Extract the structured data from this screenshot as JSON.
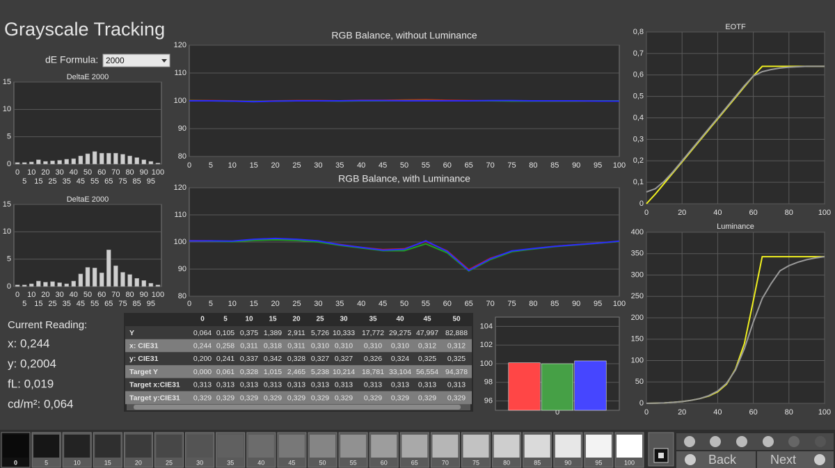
{
  "title": "Grayscale Tracking",
  "de_formula": {
    "label": "dE Formula:",
    "value": "2000"
  },
  "chart_data": [
    {
      "type": "bar",
      "title": "DeltaE 2000",
      "categories": [
        "0",
        "5",
        "10",
        "15",
        "20",
        "25",
        "30",
        "35",
        "40",
        "45",
        "50",
        "55",
        "60",
        "65",
        "70",
        "75",
        "80",
        "85",
        "90",
        "95",
        "100"
      ],
      "values": [
        0.3,
        0.3,
        0.4,
        0.8,
        0.5,
        0.6,
        0.7,
        0.9,
        1.0,
        1.5,
        1.9,
        2.3,
        2.0,
        2.0,
        2.0,
        1.8,
        1.5,
        1.2,
        0.8,
        0.5,
        0.2
      ],
      "color": "#cfcfcf",
      "ylim": [
        0,
        15
      ],
      "yticks": [
        0,
        5,
        10,
        15
      ],
      "grid": "y"
    },
    {
      "type": "bar",
      "title": "DeltaE 2000",
      "categories": [
        "0",
        "5",
        "10",
        "15",
        "20",
        "25",
        "30",
        "35",
        "40",
        "45",
        "50",
        "55",
        "60",
        "65",
        "70",
        "75",
        "80",
        "85",
        "90",
        "95",
        "100"
      ],
      "values": [
        0.3,
        0.3,
        0.5,
        1.0,
        0.8,
        0.9,
        0.7,
        0.5,
        1.0,
        2.3,
        3.5,
        3.4,
        2.5,
        6.7,
        3.8,
        2.6,
        2.2,
        1.5,
        1.1,
        0.6,
        0.3
      ],
      "color": "#cfcfcf",
      "ylim": [
        0,
        15
      ],
      "yticks": [
        0,
        5,
        10,
        15
      ],
      "grid": "y"
    },
    {
      "type": "line",
      "title": "RGB Balance, without Luminance",
      "x": [
        0,
        5,
        10,
        15,
        20,
        25,
        30,
        35,
        40,
        45,
        50,
        55,
        60,
        65,
        70,
        75,
        80,
        85,
        90,
        95,
        100
      ],
      "series": [
        {
          "name": "Red",
          "color": "#d02020",
          "values": [
            100.2,
            100.1,
            100.0,
            99.8,
            100.0,
            100.1,
            100.1,
            100.0,
            100.2,
            100.2,
            100.3,
            100.4,
            100.2,
            100.1,
            100.0,
            100.0,
            100.0,
            99.9,
            99.9,
            100.0,
            100.0
          ]
        },
        {
          "name": "Green",
          "color": "#20a020",
          "values": [
            100.1,
            100.0,
            99.9,
            99.8,
            99.9,
            100.0,
            100.0,
            99.9,
            100.0,
            100.0,
            100.1,
            100.1,
            100.0,
            100.0,
            100.0,
            99.9,
            99.9,
            99.9,
            99.9,
            100.0,
            100.0
          ]
        },
        {
          "name": "Blue",
          "color": "#2a2aff",
          "values": [
            100.0,
            100.0,
            99.9,
            99.7,
            99.9,
            100.0,
            100.0,
            100.0,
            100.1,
            100.1,
            100.0,
            100.0,
            100.0,
            100.0,
            100.1,
            100.1,
            100.0,
            100.0,
            100.0,
            99.9,
            99.9
          ]
        }
      ],
      "xlim": [
        0,
        100
      ],
      "xticks": [
        0,
        5,
        10,
        15,
        20,
        25,
        30,
        35,
        40,
        45,
        50,
        55,
        60,
        65,
        70,
        75,
        80,
        85,
        90,
        95,
        100
      ],
      "ylim": [
        80,
        120
      ],
      "yticks": [
        80,
        90,
        100,
        110,
        120
      ],
      "grid": "y"
    },
    {
      "type": "line",
      "title": "RGB Balance, with Luminance",
      "x": [
        0,
        5,
        10,
        15,
        20,
        25,
        30,
        35,
        40,
        45,
        50,
        55,
        60,
        65,
        70,
        75,
        80,
        85,
        90,
        95,
        100
      ],
      "series": [
        {
          "name": "Red",
          "color": "#d02020",
          "values": [
            100.5,
            100.4,
            100.2,
            100.8,
            101.0,
            100.8,
            100.2,
            99.1,
            98.0,
            97.2,
            97.5,
            100.2,
            96.7,
            89.8,
            94.0,
            96.6,
            97.5,
            98.4,
            99.0,
            99.6,
            100.2
          ]
        },
        {
          "name": "Green",
          "color": "#20a020",
          "values": [
            100.4,
            100.3,
            100.1,
            100.6,
            100.8,
            100.6,
            100.0,
            98.8,
            97.8,
            96.8,
            96.8,
            99.3,
            96.0,
            89.3,
            93.5,
            96.4,
            97.4,
            98.3,
            98.9,
            99.5,
            100.2
          ]
        },
        {
          "name": "Blue",
          "color": "#2a2aff",
          "values": [
            100.4,
            100.4,
            100.3,
            101.0,
            101.3,
            101.0,
            100.4,
            99.0,
            98.0,
            97.0,
            97.3,
            100.4,
            96.5,
            89.5,
            93.8,
            96.7,
            97.6,
            98.4,
            99.0,
            99.6,
            100.3
          ]
        }
      ],
      "xlim": [
        0,
        100
      ],
      "xticks": [
        0,
        5,
        10,
        15,
        20,
        25,
        30,
        35,
        40,
        45,
        50,
        55,
        60,
        65,
        70,
        75,
        80,
        85,
        90,
        95,
        100
      ],
      "ylim": [
        80,
        120
      ],
      "yticks": [
        80,
        90,
        100,
        110,
        120
      ],
      "grid": "y"
    },
    {
      "type": "line",
      "title": "EOTF",
      "x": [
        0,
        5,
        10,
        15,
        20,
        25,
        30,
        35,
        40,
        45,
        50,
        55,
        60,
        65,
        70,
        75,
        80,
        85,
        90,
        95,
        100
      ],
      "series": [
        {
          "name": "Target",
          "color": "#f0f020",
          "values": [
            0,
            0.045,
            0.095,
            0.145,
            0.195,
            0.245,
            0.295,
            0.345,
            0.395,
            0.445,
            0.495,
            0.545,
            0.595,
            0.64,
            0.64,
            0.64,
            0.64,
            0.64,
            0.64,
            0.64,
            0.64
          ]
        },
        {
          "name": "Measured",
          "color": "#9a9a9a",
          "values": [
            0.055,
            0.07,
            0.105,
            0.15,
            0.2,
            0.25,
            0.3,
            0.35,
            0.4,
            0.45,
            0.5,
            0.55,
            0.595,
            0.615,
            0.625,
            0.632,
            0.636,
            0.638,
            0.64,
            0.64,
            0.64
          ]
        }
      ],
      "xlim": [
        0,
        100
      ],
      "xticks": [
        0,
        20,
        40,
        60,
        80,
        100
      ],
      "ylim": [
        0,
        0.8
      ],
      "yticks": [
        0,
        {
          "value": 0.1,
          "label": "0,1"
        },
        {
          "value": 0.2,
          "label": "0,2"
        },
        {
          "value": 0.3,
          "label": "0,3"
        },
        {
          "value": 0.4,
          "label": "0,4"
        },
        {
          "value": 0.5,
          "label": "0,5"
        },
        {
          "value": 0.6,
          "label": "0,6"
        },
        {
          "value": 0.7,
          "label": "0,7"
        },
        {
          "value": 0.8,
          "label": "0,8"
        }
      ],
      "grid": "both"
    },
    {
      "type": "line",
      "title": "Luminance",
      "x": [
        0,
        5,
        10,
        15,
        20,
        25,
        30,
        35,
        40,
        45,
        50,
        55,
        60,
        65,
        70,
        75,
        80,
        85,
        90,
        95,
        100
      ],
      "series": [
        {
          "name": "Target",
          "color": "#f0f020",
          "values": [
            0,
            0.3,
            1,
            2.5,
            4,
            7,
            11,
            17,
            27,
            45,
            80,
            140,
            240,
            343,
            343,
            343,
            343,
            343,
            343,
            343,
            343
          ]
        },
        {
          "name": "Measured",
          "color": "#9a9a9a",
          "values": [
            0,
            0.3,
            1,
            2.5,
            4,
            7,
            11,
            18,
            29,
            47,
            78,
            128,
            190,
            245,
            280,
            310,
            322,
            330,
            336,
            340,
            343
          ]
        }
      ],
      "xlim": [
        0,
        100
      ],
      "xticks": [
        0,
        20,
        40,
        60,
        80,
        100
      ],
      "ylim": [
        0,
        400
      ],
      "yticks": [
        0,
        50,
        100,
        150,
        200,
        250,
        300,
        350,
        400
      ],
      "grid": "both"
    },
    {
      "type": "bar",
      "categories": [
        "0"
      ],
      "series": [
        {
          "name": "Red",
          "color": "#ff4646",
          "values": [
            100.1
          ]
        },
        {
          "name": "Green",
          "color": "#46a046",
          "values": [
            100.0
          ]
        },
        {
          "name": "Blue",
          "color": "#4646ff",
          "values": [
            100.3
          ]
        }
      ],
      "ylim": [
        95,
        105
      ],
      "yticks": [
        96,
        98,
        100,
        102,
        104
      ],
      "grid": "y"
    }
  ],
  "current_reading": {
    "title": "Current Reading:",
    "lines": [
      "x: 0,244",
      "y: 0,2004",
      "fL: 0,019",
      "cd/m²: 0,064"
    ]
  },
  "table": {
    "columns": [
      "0",
      "5",
      "10",
      "15",
      "20",
      "25",
      "30",
      "35",
      "40",
      "45",
      "50"
    ],
    "rows": [
      {
        "label": "Y",
        "values": [
          "0,064",
          "0,105",
          "0,375",
          "1,389",
          "2,911",
          "5,726",
          "10,333",
          "17,772",
          "29,275",
          "47,997",
          "82,888"
        ]
      },
      {
        "label": "x: CIE31",
        "values": [
          "0,244",
          "0,258",
          "0,311",
          "0,318",
          "0,311",
          "0,310",
          "0,310",
          "0,310",
          "0,310",
          "0,312",
          "0,312"
        ]
      },
      {
        "label": "y: CIE31",
        "values": [
          "0,200",
          "0,241",
          "0,337",
          "0,342",
          "0,328",
          "0,327",
          "0,327",
          "0,326",
          "0,324",
          "0,325",
          "0,325"
        ]
      },
      {
        "label": "Target Y",
        "values": [
          "0,000",
          "0,061",
          "0,328",
          "1,015",
          "2,465",
          "5,238",
          "10,214",
          "18,781",
          "33,104",
          "56,554",
          "94,378"
        ]
      },
      {
        "label": "Target x:CIE31",
        "values": [
          "0,313",
          "0,313",
          "0,313",
          "0,313",
          "0,313",
          "0,313",
          "0,313",
          "0,313",
          "0,313",
          "0,313",
          "0,313"
        ]
      },
      {
        "label": "Target y:CIE31",
        "values": [
          "0,329",
          "0,329",
          "0,329",
          "0,329",
          "0,329",
          "0,329",
          "0,329",
          "0,329",
          "0,329",
          "0,329",
          "0,329"
        ]
      }
    ]
  },
  "swatches": [
    "0",
    "5",
    "10",
    "15",
    "20",
    "25",
    "30",
    "35",
    "40",
    "45",
    "50",
    "55",
    "60",
    "65",
    "70",
    "75",
    "80",
    "85",
    "90",
    "95",
    "100"
  ],
  "buttons": {
    "back": "Back",
    "next": "Next"
  }
}
